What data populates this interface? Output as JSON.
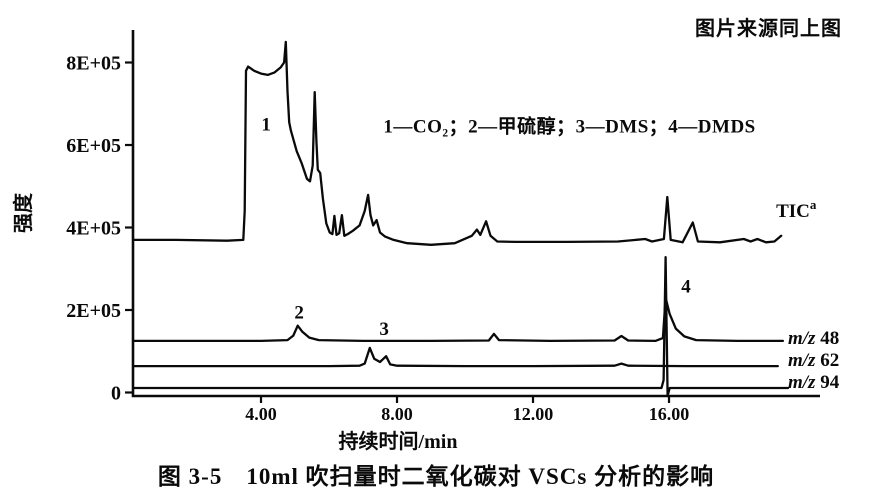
{
  "source_note": "图片来源同上图",
  "caption": "图 3-5　10ml 吹扫量时二氧化碳对 VSCs 分析的影响",
  "chart_data": {
    "type": "line",
    "title": "图 3-5 10ml吹扫量时二氧化碳对VSCs分析的影响",
    "xlabel": "持续时间/min",
    "ylabel": "强度",
    "x_range_min": [
      0.25,
      20.2
    ],
    "y_range": [
      0,
      880000
    ],
    "grid": false,
    "legend_note": {
      "text": "1—CO₂；2—甲硫醇；3—DMS；4—DMDS",
      "t": 7.6,
      "v": 6.3
    },
    "x_ticks": [
      {
        "label": "4.00",
        "t": 4
      },
      {
        "label": "8.00",
        "t": 8
      },
      {
        "label": "12.00",
        "t": 12
      },
      {
        "label": "16.00",
        "t": 16
      }
    ],
    "y_ticks": [
      {
        "label": "8E+05",
        "v": 8
      },
      {
        "label": "6E+05",
        "v": 6
      },
      {
        "label": "4E+05",
        "v": 4
      },
      {
        "label": "2E+05",
        "v": 2
      },
      {
        "label": "0",
        "v": 0
      }
    ],
    "y_unit": "counts ×1E5",
    "peak_labels": [
      {
        "text": "1",
        "t": 4.15,
        "v": 6.35
      },
      {
        "text": "2",
        "t": 5.12,
        "v": 1.8
      },
      {
        "text": "3",
        "t": 7.62,
        "v": 1.4
      },
      {
        "text": "4",
        "t": 16.5,
        "v": 2.42
      }
    ],
    "trace_labels": [
      {
        "name": "tic-label",
        "text": "TIC",
        "sup": "a",
        "t": 19.15,
        "v": 4.25
      },
      {
        "name": "mz48-label",
        "italic": "m/z",
        "rest": " 48",
        "t": 19.5,
        "v": 1.18
      },
      {
        "name": "mz62-label",
        "italic": "m/z",
        "rest": " 62",
        "t": 19.5,
        "v": 0.64
      },
      {
        "name": "mz94-label",
        "italic": "m/z",
        "rest": " 94",
        "t": 19.5,
        "v": 0.11
      }
    ],
    "series": [
      {
        "name": "TIC",
        "points": [
          [
            0.25,
            3.7
          ],
          [
            1.5,
            3.7
          ],
          [
            3.0,
            3.68
          ],
          [
            3.48,
            3.7
          ],
          [
            3.52,
            4.4
          ],
          [
            3.56,
            7.8
          ],
          [
            3.62,
            7.9
          ],
          [
            3.8,
            7.8
          ],
          [
            4.0,
            7.73
          ],
          [
            4.2,
            7.7
          ],
          [
            4.4,
            7.76
          ],
          [
            4.58,
            7.88
          ],
          [
            4.68,
            8.0
          ],
          [
            4.73,
            8.5
          ],
          [
            4.78,
            7.3
          ],
          [
            4.83,
            6.55
          ],
          [
            4.88,
            6.35
          ],
          [
            5.05,
            5.85
          ],
          [
            5.2,
            5.55
          ],
          [
            5.35,
            5.18
          ],
          [
            5.44,
            5.12
          ],
          [
            5.52,
            5.5
          ],
          [
            5.58,
            7.28
          ],
          [
            5.63,
            6.1
          ],
          [
            5.67,
            5.4
          ],
          [
            5.74,
            5.32
          ],
          [
            5.82,
            4.7
          ],
          [
            5.92,
            4.1
          ],
          [
            6.02,
            3.88
          ],
          [
            6.1,
            3.84
          ],
          [
            6.16,
            4.28
          ],
          [
            6.22,
            3.82
          ],
          [
            6.3,
            3.86
          ],
          [
            6.38,
            4.3
          ],
          [
            6.45,
            3.8
          ],
          [
            6.55,
            3.84
          ],
          [
            6.7,
            3.92
          ],
          [
            6.9,
            4.05
          ],
          [
            7.05,
            4.4
          ],
          [
            7.15,
            4.79
          ],
          [
            7.22,
            4.3
          ],
          [
            7.3,
            4.05
          ],
          [
            7.4,
            4.18
          ],
          [
            7.5,
            3.88
          ],
          [
            7.65,
            3.78
          ],
          [
            7.9,
            3.7
          ],
          [
            8.3,
            3.62
          ],
          [
            9.0,
            3.58
          ],
          [
            9.7,
            3.62
          ],
          [
            10.2,
            3.8
          ],
          [
            10.35,
            3.95
          ],
          [
            10.45,
            3.82
          ],
          [
            10.62,
            4.15
          ],
          [
            10.75,
            3.8
          ],
          [
            10.95,
            3.66
          ],
          [
            11.5,
            3.65
          ],
          [
            13.0,
            3.65
          ],
          [
            14.5,
            3.66
          ],
          [
            15.3,
            3.72
          ],
          [
            15.5,
            3.66
          ],
          [
            15.85,
            3.72
          ],
          [
            15.95,
            4.74
          ],
          [
            16.05,
            3.7
          ],
          [
            16.4,
            3.64
          ],
          [
            16.7,
            4.12
          ],
          [
            16.85,
            3.66
          ],
          [
            17.5,
            3.64
          ],
          [
            18.2,
            3.72
          ],
          [
            18.4,
            3.66
          ],
          [
            18.6,
            3.72
          ],
          [
            18.85,
            3.64
          ],
          [
            19.1,
            3.66
          ],
          [
            19.3,
            3.8
          ]
        ]
      },
      {
        "name": "m/z 48",
        "points": [
          [
            0.25,
            1.25
          ],
          [
            2.0,
            1.25
          ],
          [
            4.0,
            1.25
          ],
          [
            4.78,
            1.27
          ],
          [
            4.95,
            1.38
          ],
          [
            5.08,
            1.62
          ],
          [
            5.22,
            1.47
          ],
          [
            5.42,
            1.33
          ],
          [
            5.7,
            1.27
          ],
          [
            7.0,
            1.25
          ],
          [
            9.0,
            1.25
          ],
          [
            10.7,
            1.26
          ],
          [
            10.85,
            1.42
          ],
          [
            11.0,
            1.27
          ],
          [
            12.5,
            1.25
          ],
          [
            14.4,
            1.26
          ],
          [
            14.6,
            1.37
          ],
          [
            14.8,
            1.26
          ],
          [
            15.6,
            1.25
          ],
          [
            15.82,
            1.32
          ],
          [
            15.9,
            2.3
          ],
          [
            16.02,
            1.9
          ],
          [
            16.2,
            1.55
          ],
          [
            16.45,
            1.36
          ],
          [
            16.8,
            1.27
          ],
          [
            18.0,
            1.25
          ],
          [
            19.35,
            1.25
          ]
        ]
      },
      {
        "name": "m/z 62",
        "points": [
          [
            0.25,
            0.64
          ],
          [
            3.0,
            0.64
          ],
          [
            6.0,
            0.64
          ],
          [
            6.9,
            0.65
          ],
          [
            7.05,
            0.7
          ],
          [
            7.2,
            1.08
          ],
          [
            7.33,
            0.82
          ],
          [
            7.5,
            0.74
          ],
          [
            7.68,
            0.88
          ],
          [
            7.8,
            0.68
          ],
          [
            8.0,
            0.65
          ],
          [
            10.0,
            0.64
          ],
          [
            12.0,
            0.64
          ],
          [
            14.4,
            0.65
          ],
          [
            14.6,
            0.7
          ],
          [
            14.8,
            0.65
          ],
          [
            16.5,
            0.64
          ],
          [
            19.2,
            0.64
          ]
        ]
      },
      {
        "name": "m/z 94",
        "points": [
          [
            0.25,
            0.11
          ],
          [
            5.0,
            0.11
          ],
          [
            10.0,
            0.11
          ],
          [
            15.0,
            0.11
          ],
          [
            15.78,
            0.11
          ],
          [
            15.84,
            0.3
          ],
          [
            15.9,
            3.28
          ],
          [
            15.96,
            -0.08
          ],
          [
            16.02,
            0.11
          ],
          [
            17.0,
            0.11
          ],
          [
            19.5,
            0.11
          ]
        ]
      }
    ]
  }
}
